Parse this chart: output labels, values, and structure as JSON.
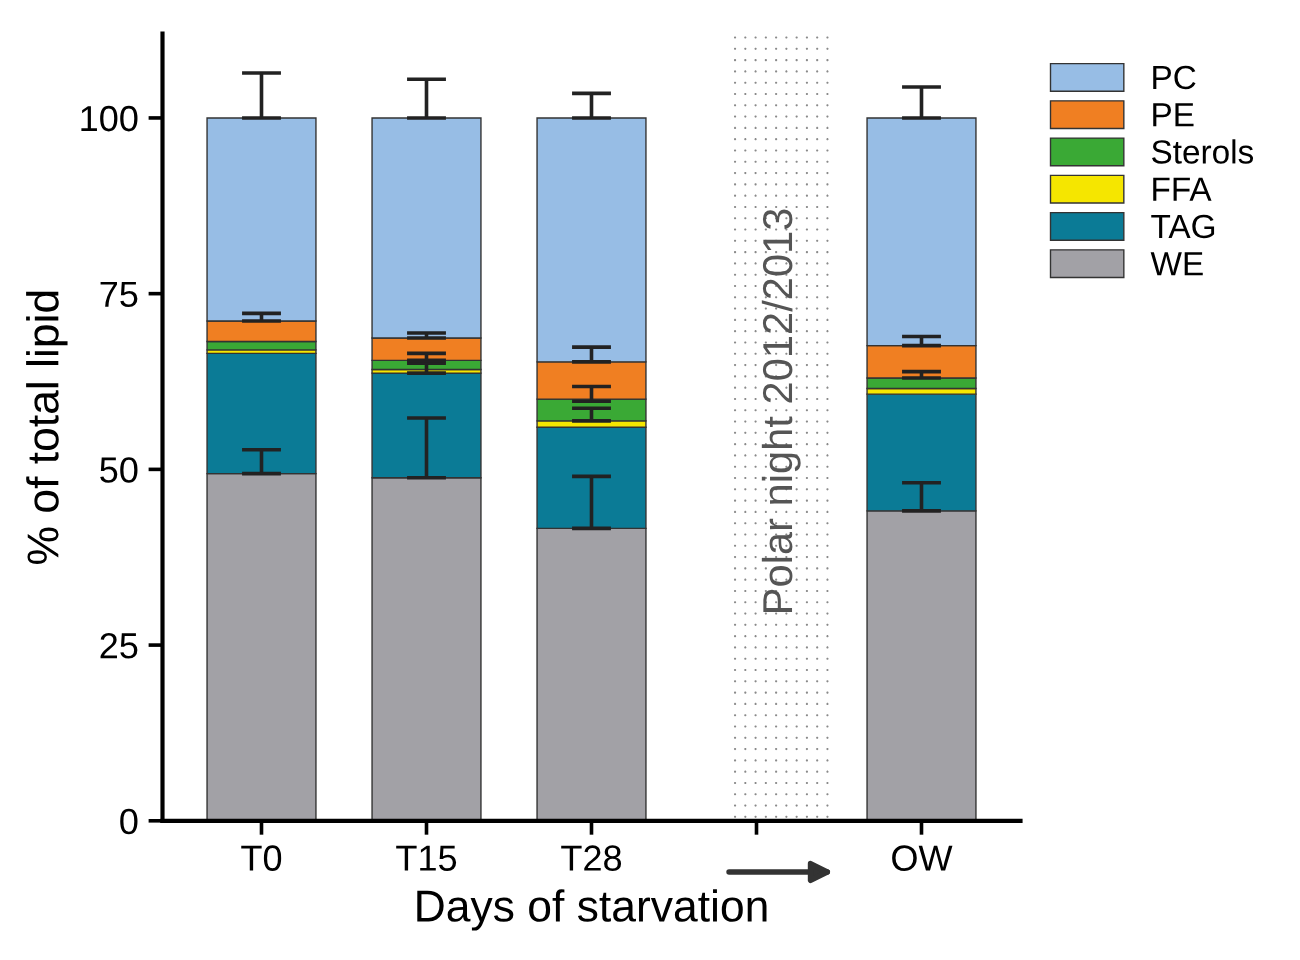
{
  "chart_data": {
    "type": "bar",
    "stacked": true,
    "xlabel": "Days of starvation",
    "ylabel": "% of total lipid",
    "categories": [
      "T0",
      "T15",
      "T28",
      null,
      "OW"
    ],
    "series": [
      {
        "name": "WE",
        "color": "#a2a1a6",
        "values": [
          49.4,
          48.8,
          41.6,
          null,
          44.1
        ],
        "errors": [
          [
            49.4,
            52.8
          ],
          [
            48.8,
            57.3
          ],
          [
            41.6,
            49.0
          ],
          null,
          [
            44.1,
            48.1
          ]
        ]
      },
      {
        "name": "TAG",
        "color": "#0b7b96",
        "values": [
          17.1,
          14.9,
          14.4,
          null,
          16.6
        ],
        "errors": [
          null,
          [
            63.7,
            65.1
          ],
          null,
          null,
          null
        ]
      },
      {
        "name": "FFA",
        "color": "#f5e600",
        "values": [
          0.5,
          0.5,
          0.9,
          null,
          0.8
        ],
        "errors": [
          null,
          null,
          [
            56.9,
            58.7
          ],
          null,
          null
        ]
      },
      {
        "name": "Sterols",
        "color": "#3aa935",
        "values": [
          1.2,
          1.3,
          3.1,
          null,
          1.5
        ],
        "errors": [
          null,
          [
            65.5,
            66.5
          ],
          [
            59.7,
            61.8
          ],
          null,
          [
            63.0,
            63.9
          ]
        ]
      },
      {
        "name": "PE",
        "color": "#f07f22",
        "values": [
          2.9,
          3.2,
          5.3,
          null,
          4.6
        ],
        "errors": [
          [
            71.1,
            72.2
          ],
          [
            68.7,
            69.4
          ],
          [
            65.3,
            67.4
          ],
          null,
          [
            67.6,
            68.9
          ]
        ]
      },
      {
        "name": "PC",
        "color": "#97bde5",
        "values": [
          28.9,
          31.3,
          34.7,
          null,
          32.4
        ],
        "errors": [
          [
            100,
            106.4
          ],
          [
            100,
            105.5
          ],
          [
            100,
            103.5
          ],
          null,
          [
            100,
            104.4
          ]
        ]
      }
    ],
    "ylim": [
      0,
      112
    ],
    "yticks": [
      0,
      25,
      50,
      75,
      100
    ],
    "grid": false,
    "legend": "top right",
    "annotations": [
      "Polar night 2012/2013"
    ]
  }
}
